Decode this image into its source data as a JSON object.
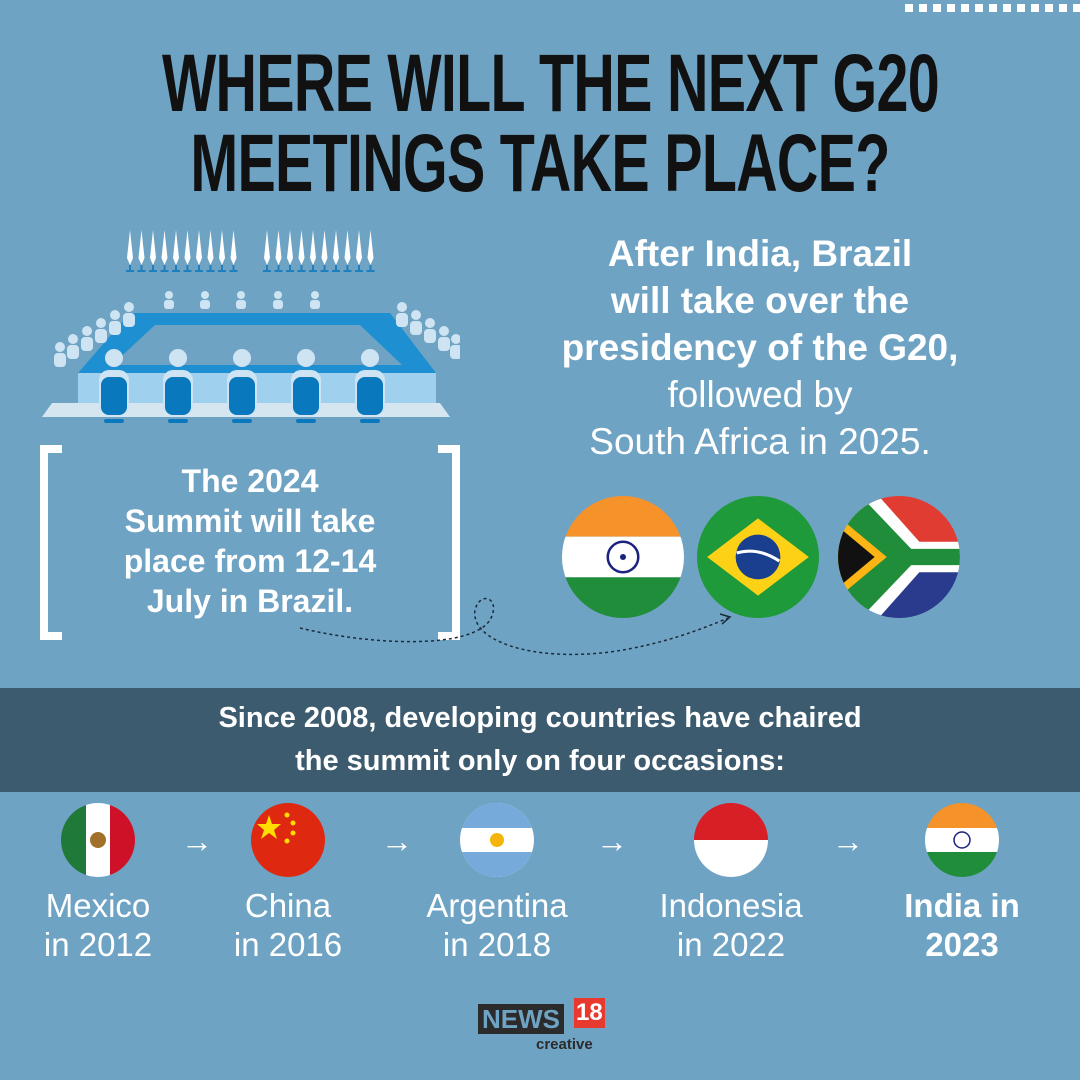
{
  "title": {
    "line1": "WHERE WILL THE NEXT G20",
    "line2": "MEETINGS TAKE PLACE?"
  },
  "intro": {
    "bold_lines": [
      "After India, Brazil",
      "will take over the",
      "presidency of the G20,"
    ],
    "regular_lines": [
      "followed by",
      "South Africa in 2025."
    ]
  },
  "summit_box": {
    "lines": [
      "The 2024",
      "Summit will take",
      "place from 12-14",
      "July in Brazil."
    ]
  },
  "presidency_flags": [
    "india-flag",
    "brazil-flag",
    "south-africa-flag"
  ],
  "band": {
    "lines": [
      "Since 2008, developing countries have chaired",
      "the summit only on four occasions:"
    ]
  },
  "timeline": [
    {
      "flag": "mexico-flag",
      "line1": "Mexico",
      "line2": "in 2012"
    },
    {
      "flag": "china-flag",
      "line1": "China",
      "line2": "in 2016"
    },
    {
      "flag": "argentina-flag",
      "line1": "Argentina",
      "line2": "in 2018"
    },
    {
      "flag": "indonesia-flag",
      "line1": "Indonesia",
      "line2": "in 2022"
    },
    {
      "flag": "india-flag",
      "line1": "India in",
      "line2": "2023",
      "highlight": true
    }
  ],
  "arrow_glyph": "→",
  "logo": {
    "brand": "NEWS",
    "number": "18",
    "sub": "creative"
  },
  "colors": {
    "background": "#6fa3c4",
    "band": "#3d5b6f",
    "title": "#111111",
    "logo_red": "#e8392f"
  }
}
